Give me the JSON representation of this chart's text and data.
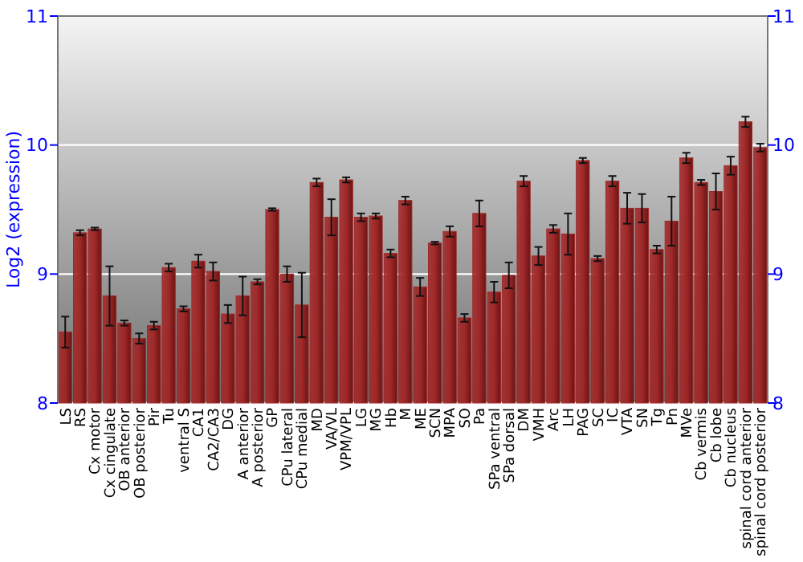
{
  "chart_data": {
    "type": "bar",
    "ylabel": "Log2 (expression)",
    "categories": [
      "LS",
      "RS",
      "Cx motor",
      "Cx cingulate",
      "OB anterior",
      "OB posterior",
      "Pir",
      "Tu",
      "ventral S",
      "CA1",
      "CA2/CA3",
      "DG",
      "A anterior",
      "A posterior",
      "GP",
      "CPu lateral",
      "CPu medial",
      "MD",
      "VA/VL",
      "VPM/VPL",
      "LG",
      "MG",
      "Hb",
      "M",
      "ME",
      "SCN",
      "MPA",
      "SO",
      "Pa",
      "SPa ventral",
      "SPa dorsal",
      "DM",
      "VMH",
      "Arc",
      "LH",
      "PAG",
      "SC",
      "IC",
      "VTA",
      "SN",
      "Tg",
      "Pn",
      "MVe",
      "Cb vermis",
      "Cb lobe",
      "Cb nucleus",
      "spinal cord anterior",
      "spinal cord posterior"
    ],
    "values": [
      8.55,
      9.32,
      9.35,
      8.83,
      8.62,
      8.5,
      8.6,
      9.05,
      8.73,
      9.1,
      9.02,
      8.69,
      8.83,
      8.94,
      9.5,
      9.0,
      8.76,
      9.71,
      9.44,
      9.73,
      9.44,
      9.45,
      9.16,
      9.57,
      8.9,
      9.24,
      9.33,
      8.66,
      9.47,
      8.86,
      8.99,
      9.72,
      9.14,
      9.35,
      9.31,
      9.88,
      9.12,
      9.72,
      9.51,
      9.51,
      9.19,
      9.41,
      9.9,
      9.71,
      9.64,
      9.84,
      10.18,
      9.98
    ],
    "errors": [
      0.12,
      0.02,
      0.01,
      0.23,
      0.02,
      0.04,
      0.03,
      0.03,
      0.02,
      0.05,
      0.07,
      0.07,
      0.15,
      0.02,
      0.01,
      0.06,
      0.25,
      0.03,
      0.14,
      0.02,
      0.03,
      0.02,
      0.03,
      0.03,
      0.07,
      0.01,
      0.04,
      0.03,
      0.1,
      0.08,
      0.1,
      0.04,
      0.07,
      0.03,
      0.16,
      0.02,
      0.02,
      0.04,
      0.12,
      0.11,
      0.03,
      0.19,
      0.04,
      0.02,
      0.14,
      0.07,
      0.04,
      0.03
    ],
    "color": "#a02828",
    "ylim": [
      8,
      11
    ],
    "yticks": [
      8,
      9,
      10,
      11
    ],
    "y2lim": [
      8,
      11
    ],
    "y2ticks": [
      8,
      9,
      10,
      11
    ],
    "grid": "y"
  }
}
